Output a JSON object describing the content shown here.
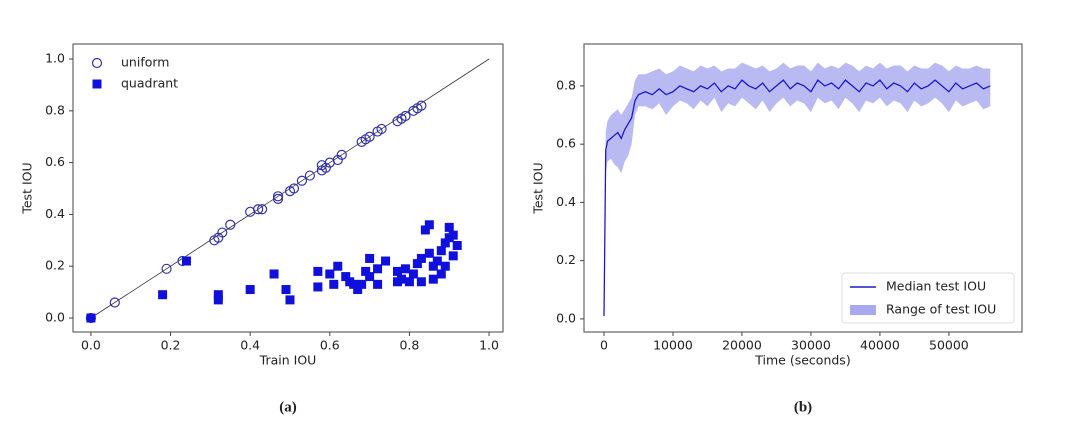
{
  "chart_data": [
    {
      "type": "scatter",
      "caption": "(a)",
      "xlabel": "Train IOU",
      "ylabel": "Test IOU",
      "xlim": [
        -0.045,
        1.035
      ],
      "ylim": [
        -0.054,
        1.058
      ],
      "xticks": [
        {
          "value": 0,
          "label": "0.0"
        },
        0.2,
        0.4,
        0.6,
        0.8,
        {
          "value": 1,
          "label": "1.0"
        }
      ],
      "yticks": [
        {
          "value": 0,
          "label": "0.0"
        },
        0.2,
        0.4,
        0.6,
        0.8,
        {
          "value": 1,
          "label": "1.0"
        }
      ],
      "legend": "upper left",
      "reference_line": true,
      "series": [
        {
          "name": "uniform",
          "color": "#3333aa",
          "marker": "circle",
          "filled": false,
          "x": [
            0,
            0.06,
            0.19,
            0.23,
            0.31,
            0.32,
            0.33,
            0.35,
            0.4,
            0.42,
            0.43,
            0.47,
            0.47,
            0.5,
            0.51,
            0.53,
            0.55,
            0.58,
            0.58,
            0.59,
            0.6,
            0.62,
            0.63,
            0.68,
            0.69,
            0.7,
            0.72,
            0.73,
            0.77,
            0.78,
            0.79,
            0.81,
            0.82,
            0.83
          ],
          "y": [
            0,
            0.06,
            0.19,
            0.22,
            0.3,
            0.31,
            0.33,
            0.36,
            0.41,
            0.42,
            0.42,
            0.47,
            0.46,
            0.49,
            0.5,
            0.53,
            0.55,
            0.57,
            0.59,
            0.58,
            0.6,
            0.61,
            0.63,
            0.68,
            0.69,
            0.7,
            0.72,
            0.73,
            0.76,
            0.77,
            0.78,
            0.8,
            0.81,
            0.82
          ]
        },
        {
          "name": "quadrant",
          "color": "#1010dd",
          "marker": "square",
          "filled": true,
          "x": [
            0,
            0.24,
            0.18,
            0.32,
            0.32,
            0.4,
            0.46,
            0.49,
            0.5,
            0.57,
            0.57,
            0.6,
            0.61,
            0.62,
            0.64,
            0.65,
            0.66,
            0.67,
            0.68,
            0.69,
            0.7,
            0.7,
            0.72,
            0.72,
            0.74,
            0.77,
            0.77,
            0.78,
            0.79,
            0.8,
            0.81,
            0.82,
            0.83,
            0.83,
            0.84,
            0.85,
            0.85,
            0.86,
            0.87,
            0.88,
            0.89,
            0.89,
            0.9,
            0.9,
            0.91,
            0.91,
            0.92,
            0.86,
            0.88
          ],
          "y": [
            0,
            0.22,
            0.09,
            0.09,
            0.07,
            0.11,
            0.17,
            0.11,
            0.07,
            0.12,
            0.18,
            0.17,
            0.13,
            0.2,
            0.16,
            0.14,
            0.13,
            0.11,
            0.13,
            0.18,
            0.16,
            0.23,
            0.13,
            0.19,
            0.22,
            0.18,
            0.14,
            0.15,
            0.19,
            0.14,
            0.17,
            0.21,
            0.14,
            0.23,
            0.34,
            0.36,
            0.25,
            0.2,
            0.22,
            0.26,
            0.29,
            0.2,
            0.35,
            0.31,
            0.24,
            0.32,
            0.28,
            0.15,
            0.17
          ]
        }
      ]
    },
    {
      "type": "line",
      "caption": "(b)",
      "xlabel": "Time (seconds)",
      "ylabel": "Test IOU",
      "xlim": [
        -2900,
        60600
      ],
      "ylim": [
        -0.045,
        0.944
      ],
      "xticks": [
        0,
        10000,
        20000,
        30000,
        40000,
        50000
      ],
      "yticks": [
        {
          "value": 0,
          "label": "0.0"
        },
        0.2,
        0.4,
        0.6,
        0.8
      ],
      "legend": "lower right",
      "x": [
        0,
        250,
        500,
        1000,
        1500,
        2000,
        2500,
        3000,
        3500,
        4000,
        4500,
        5000,
        6000,
        7000,
        8000,
        9000,
        10000,
        11000,
        12000,
        13000,
        14000,
        15000,
        16000,
        17000,
        18000,
        19000,
        20000,
        21000,
        22000,
        23000,
        24000,
        25000,
        26000,
        27000,
        28000,
        29000,
        30000,
        31000,
        32000,
        33000,
        34000,
        35000,
        36000,
        37000,
        38000,
        39000,
        40000,
        41000,
        42000,
        43000,
        44000,
        45000,
        46000,
        47000,
        48000,
        49000,
        50000,
        51000,
        52000,
        53000,
        54000,
        55000,
        56000
      ],
      "series": [
        {
          "name": "Median test IOU",
          "color": "#1a1acc",
          "values": [
            0.01,
            0.58,
            0.61,
            0.62,
            0.63,
            0.64,
            0.62,
            0.65,
            0.67,
            0.69,
            0.75,
            0.77,
            0.78,
            0.77,
            0.79,
            0.77,
            0.78,
            0.8,
            0.79,
            0.78,
            0.8,
            0.79,
            0.81,
            0.78,
            0.8,
            0.79,
            0.82,
            0.8,
            0.79,
            0.81,
            0.78,
            0.8,
            0.82,
            0.79,
            0.81,
            0.8,
            0.78,
            0.82,
            0.8,
            0.81,
            0.79,
            0.82,
            0.8,
            0.78,
            0.81,
            0.8,
            0.82,
            0.79,
            0.81,
            0.8,
            0.78,
            0.81,
            0.79,
            0.8,
            0.82,
            0.8,
            0.78,
            0.81,
            0.79,
            0.8,
            0.81,
            0.79,
            0.8
          ]
        }
      ],
      "band": {
        "name": "Range of test IOU",
        "color": "#a9a9f0",
        "lower": [
          0.01,
          0.5,
          0.54,
          0.55,
          0.53,
          0.52,
          0.5,
          0.54,
          0.56,
          0.6,
          0.7,
          0.73,
          0.73,
          0.72,
          0.74,
          0.7,
          0.73,
          0.75,
          0.74,
          0.72,
          0.75,
          0.73,
          0.76,
          0.71,
          0.74,
          0.73,
          0.76,
          0.74,
          0.72,
          0.75,
          0.71,
          0.74,
          0.76,
          0.73,
          0.75,
          0.74,
          0.71,
          0.76,
          0.74,
          0.75,
          0.72,
          0.76,
          0.74,
          0.71,
          0.75,
          0.74,
          0.76,
          0.73,
          0.75,
          0.74,
          0.71,
          0.75,
          0.73,
          0.74,
          0.76,
          0.74,
          0.71,
          0.75,
          0.73,
          0.74,
          0.75,
          0.72,
          0.73
        ],
        "upper": [
          0.01,
          0.64,
          0.68,
          0.7,
          0.71,
          0.72,
          0.7,
          0.72,
          0.74,
          0.76,
          0.82,
          0.84,
          0.84,
          0.85,
          0.86,
          0.84,
          0.85,
          0.87,
          0.86,
          0.85,
          0.87,
          0.86,
          0.87,
          0.85,
          0.86,
          0.86,
          0.88,
          0.87,
          0.86,
          0.87,
          0.85,
          0.86,
          0.88,
          0.86,
          0.87,
          0.87,
          0.85,
          0.88,
          0.86,
          0.87,
          0.86,
          0.88,
          0.87,
          0.85,
          0.87,
          0.86,
          0.88,
          0.86,
          0.87,
          0.87,
          0.85,
          0.87,
          0.86,
          0.86,
          0.88,
          0.87,
          0.85,
          0.87,
          0.86,
          0.86,
          0.87,
          0.86,
          0.86
        ]
      }
    }
  ]
}
